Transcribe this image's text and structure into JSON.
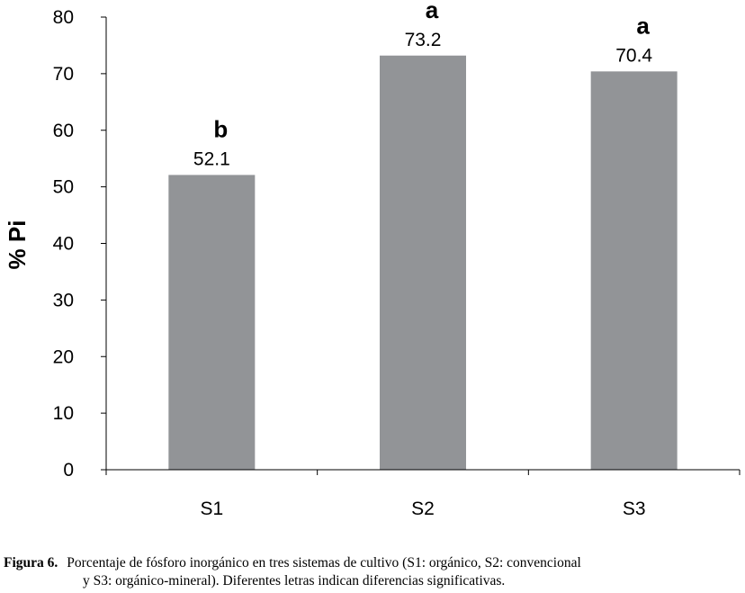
{
  "chart_data": {
    "type": "bar",
    "categories": [
      "S1",
      "S2",
      "S3"
    ],
    "values": [
      52.1,
      73.2,
      70.4
    ],
    "data_labels": [
      "52.1",
      "73.2",
      "70.4"
    ],
    "significance_letters": [
      "b",
      "a",
      "a"
    ],
    "title": "",
    "xlabel": "",
    "ylabel": "% Pi",
    "ylim": [
      0,
      80
    ],
    "yticks": [
      0,
      10,
      20,
      30,
      40,
      50,
      60,
      70,
      80
    ],
    "grid": false,
    "legend": "none",
    "bar_color": "#929497"
  },
  "caption": {
    "label": "Figura 6.",
    "line1": "Porcentaje de fósforo inorgánico en tres sistemas de cultivo (S1: orgánico, S2: convencional",
    "line2": "y S3: orgánico-mineral). Diferentes letras indican diferencias significativas."
  }
}
